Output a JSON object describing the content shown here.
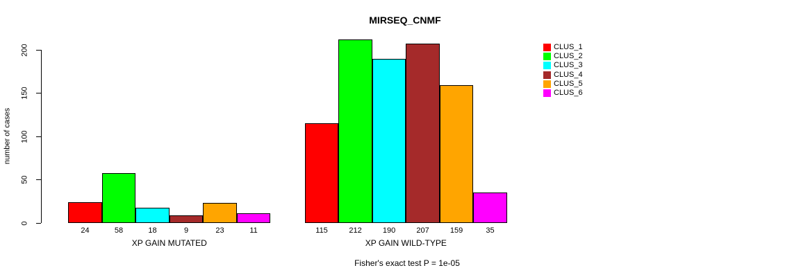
{
  "chart_data": {
    "type": "bar",
    "title": "MIRSEQ_CNMF",
    "ylabel": "number of cases",
    "ylim": [
      0,
      200
    ],
    "yticks": [
      0,
      50,
      100,
      150,
      200
    ],
    "grid": false,
    "legend_position": "right",
    "legend": [
      {
        "label": "CLUS_1",
        "color": "#FF0000"
      },
      {
        "label": "CLUS_2",
        "color": "#00FF00"
      },
      {
        "label": "CLUS_3",
        "color": "#00FFFF"
      },
      {
        "label": "CLUS_4",
        "color": "#A52A2A"
      },
      {
        "label": "CLUS_5",
        "color": "#FFA500"
      },
      {
        "label": "CLUS_6",
        "color": "#FF00FF"
      }
    ],
    "groups": [
      {
        "label": "XP GAIN MUTATED",
        "values": [
          24,
          58,
          18,
          9,
          23,
          11
        ]
      },
      {
        "label": "XP GAIN WILD-TYPE",
        "values": [
          115,
          212,
          190,
          207,
          159,
          35
        ]
      }
    ],
    "footnote": "Fisher's exact test P = 1e-05"
  }
}
